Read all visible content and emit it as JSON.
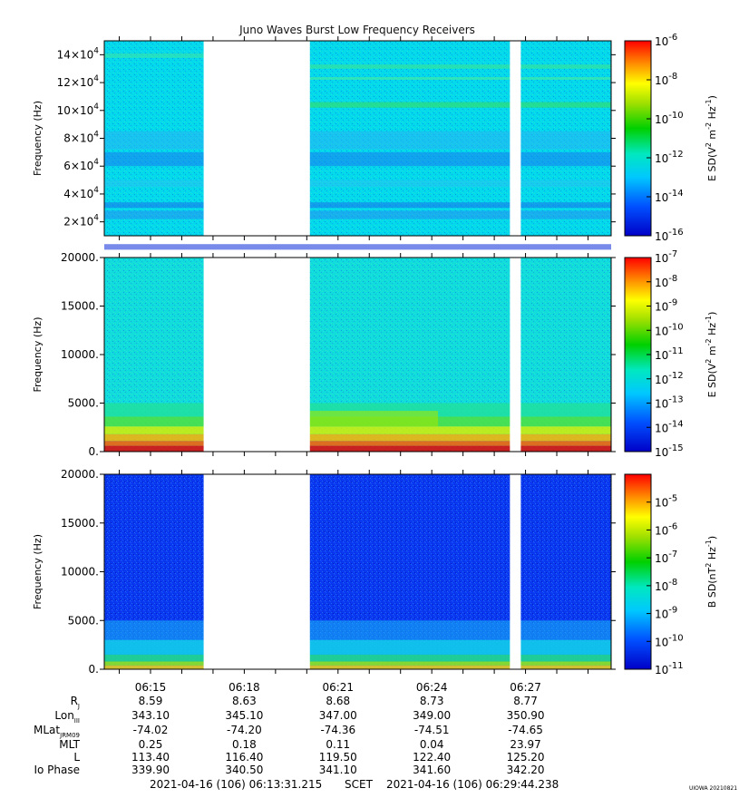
{
  "chart_data": {
    "type": "heatmap",
    "title": "Juno Waves Burst Low Frequency Receivers",
    "time_axis": {
      "tick_labels": [
        "06:15",
        "06:18",
        "06:21",
        "06:24",
        "06:27"
      ],
      "start_minutes": 13.52,
      "end_minutes": 29.74
    },
    "data_gaps_minutes": [
      [
        16.7,
        20.1
      ],
      [
        26.5,
        26.85
      ]
    ],
    "panels": [
      {
        "ylabel": "Frequency (Hz)",
        "y_ticks": [
          {
            "value": 20000,
            "mant": "2",
            "exp": "4"
          },
          {
            "value": 40000,
            "mant": "4",
            "exp": "4"
          },
          {
            "value": 60000,
            "mant": "6",
            "exp": "4"
          },
          {
            "value": 80000,
            "mant": "8",
            "exp": "4"
          },
          {
            "value": 100000,
            "mant": "10",
            "exp": "4"
          },
          {
            "value": 120000,
            "mant": "12",
            "exp": "4"
          },
          {
            "value": 140000,
            "mant": "14",
            "exp": "4"
          }
        ],
        "ylim": [
          10000,
          150000
        ],
        "colorbar": {
          "label_base": "E SD(V",
          "label_sup1": "2",
          "label_mid": " m",
          "label_sup2": "-2",
          "label_mid2": " Hz",
          "label_sup3": "-1",
          "label_end": ")",
          "log_min": -16,
          "log_max": -6,
          "tick_exps": [
            "-6",
            "-8",
            "-10",
            "-12",
            "-14",
            "-16"
          ]
        },
        "style": "efield_high"
      },
      {
        "ylabel": "Frequency (Hz)",
        "y_ticks": [
          {
            "value": 0,
            "text": "0."
          },
          {
            "value": 5000,
            "text": "5000."
          },
          {
            "value": 10000,
            "text": "10000."
          },
          {
            "value": 15000,
            "text": "15000."
          },
          {
            "value": 20000,
            "text": "20000."
          }
        ],
        "ylim": [
          0,
          20000
        ],
        "colorbar": {
          "label_base": "E SD(V",
          "label_sup1": "2",
          "label_mid": " m",
          "label_sup2": "-2",
          "label_mid2": " Hz",
          "label_sup3": "-1",
          "label_end": ")",
          "log_min": -15,
          "log_max": -7,
          "tick_exps": [
            "-7",
            "-8",
            "-9",
            "-10",
            "-11",
            "-12",
            "-13",
            "-14",
            "-15"
          ]
        },
        "style": "efield_low"
      },
      {
        "ylabel": "Frequency (Hz)",
        "y_ticks": [
          {
            "value": 0,
            "text": "0."
          },
          {
            "value": 5000,
            "text": "5000."
          },
          {
            "value": 10000,
            "text": "10000."
          },
          {
            "value": 15000,
            "text": "15000."
          },
          {
            "value": 20000,
            "text": "20000."
          }
        ],
        "ylim": [
          0,
          20000
        ],
        "colorbar": {
          "label_base": "B SD(nT",
          "label_sup1": "2",
          "label_mid": " Hz",
          "label_sup2": "-1",
          "label_mid2": "",
          "label_sup3": "",
          "label_end": ")",
          "log_min": -11,
          "log_max": -4,
          "tick_exps": [
            "-5",
            "-6",
            "-7",
            "-8",
            "-9",
            "-10",
            "-11"
          ]
        },
        "style": "bfield"
      }
    ],
    "ephemeris": {
      "rows": [
        {
          "label": "R",
          "sub": "J",
          "values": [
            "8.59",
            "8.63",
            "8.68",
            "8.73",
            "8.77"
          ]
        },
        {
          "label": "Lon",
          "sub": "III",
          "values": [
            "343.10",
            "345.10",
            "347.00",
            "349.00",
            "350.90"
          ]
        },
        {
          "label": "MLat",
          "sub": "JRM09",
          "values": [
            "-74.02",
            "-74.20",
            "-74.36",
            "-74.51",
            "-74.65"
          ]
        },
        {
          "label": "MLT",
          "sub": "",
          "values": [
            "0.25",
            "0.18",
            "0.11",
            "0.04",
            "23.97"
          ]
        },
        {
          "label": "L",
          "sub": "",
          "values": [
            "113.40",
            "116.40",
            "119.50",
            "122.40",
            "125.20"
          ]
        },
        {
          "label": "Io Phase",
          "sub": "",
          "values": [
            "339.90",
            "340.50",
            "341.10",
            "341.60",
            "342.20"
          ]
        }
      ]
    },
    "footer": {
      "start": "2021-04-16 (106) 06:13:31.215",
      "scet": "SCET",
      "end": "2021-04-16 (106) 06:29:44.238",
      "version": "UIOWA 20210821"
    }
  }
}
